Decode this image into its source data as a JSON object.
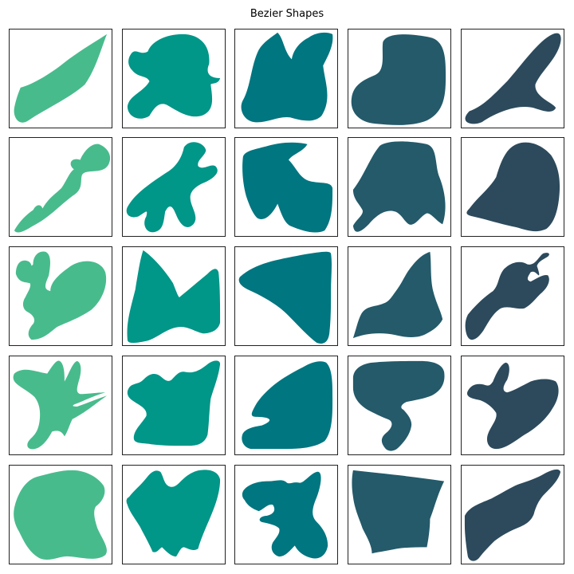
{
  "figure": {
    "title": "Bezier Shapes"
  },
  "colors": {
    "col1": "#48bb8c",
    "col2": "#009688",
    "col3": "#007680",
    "col4": "#245a6a",
    "col5": "#2c4a5c"
  },
  "shapes": [
    {
      "row": 1,
      "col": 1,
      "color": "col1"
    },
    {
      "row": 1,
      "col": 2,
      "color": "col2"
    },
    {
      "row": 1,
      "col": 3,
      "color": "col3"
    },
    {
      "row": 1,
      "col": 4,
      "color": "col4"
    },
    {
      "row": 1,
      "col": 5,
      "color": "col5"
    },
    {
      "row": 2,
      "col": 1,
      "color": "col1"
    },
    {
      "row": 2,
      "col": 2,
      "color": "col2"
    },
    {
      "row": 2,
      "col": 3,
      "color": "col3"
    },
    {
      "row": 2,
      "col": 4,
      "color": "col4"
    },
    {
      "row": 2,
      "col": 5,
      "color": "col5"
    },
    {
      "row": 3,
      "col": 1,
      "color": "col1"
    },
    {
      "row": 3,
      "col": 2,
      "color": "col2"
    },
    {
      "row": 3,
      "col": 3,
      "color": "col3"
    },
    {
      "row": 3,
      "col": 4,
      "color": "col4"
    },
    {
      "row": 3,
      "col": 5,
      "color": "col5"
    },
    {
      "row": 4,
      "col": 1,
      "color": "col1"
    },
    {
      "row": 4,
      "col": 2,
      "color": "col2"
    },
    {
      "row": 4,
      "col": 3,
      "color": "col3"
    },
    {
      "row": 4,
      "col": 4,
      "color": "col4"
    },
    {
      "row": 4,
      "col": 5,
      "color": "col5"
    },
    {
      "row": 5,
      "col": 1,
      "color": "col1"
    },
    {
      "row": 5,
      "col": 2,
      "color": "col2"
    },
    {
      "row": 5,
      "col": 3,
      "color": "col3"
    },
    {
      "row": 5,
      "col": 4,
      "color": "col4"
    },
    {
      "row": 5,
      "col": 5,
      "color": "col5"
    }
  ]
}
